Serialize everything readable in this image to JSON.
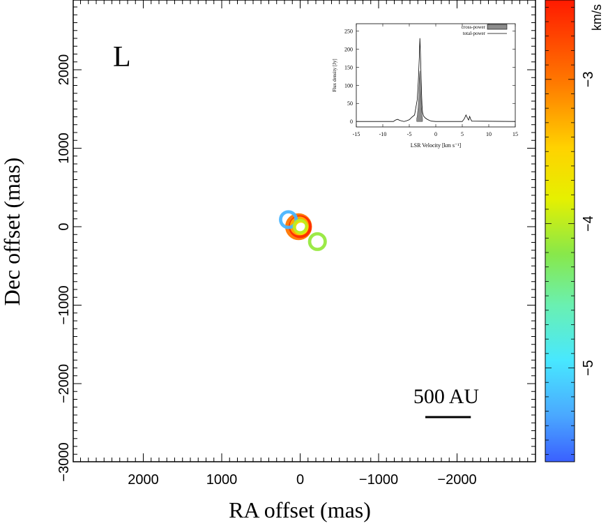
{
  "chart_data": [
    {
      "type": "scatter",
      "panel_label": "L",
      "xlabel": "RA offset (mas)",
      "ylabel": "Dec offset (mas)",
      "xlim": [
        3000,
        -3000
      ],
      "ylim": [
        -3000,
        2750
      ],
      "x_ticks": [
        2000,
        1000,
        0,
        -1000,
        -2000
      ],
      "x_tick_labels": [
        "2000",
        "1000",
        "0",
        "−1000",
        "−2000"
      ],
      "y_ticks": [
        2000,
        1000,
        0,
        -1000,
        -2000,
        -3000
      ],
      "y_tick_labels": [
        "2000",
        "1000",
        "0",
        "−1000",
        "−2000",
        "−3000"
      ],
      "scale_bar_label": "500 AU",
      "scale_bar_length_mas": 580,
      "colorbar": {
        "label": "km/s",
        "range": [
          -5.65,
          -2.45
        ],
        "ticks": [
          -3,
          -4,
          -5
        ],
        "tick_labels": [
          "−3",
          "−4",
          "−5"
        ]
      },
      "points": [
        {
          "x": 20,
          "y": 0,
          "v": -3.0,
          "size": 5
        },
        {
          "x": 0,
          "y": 0,
          "v": -2.55,
          "size": 4
        },
        {
          "x": 10,
          "y": 10,
          "v": -3.3,
          "size": 3
        },
        {
          "x": -10,
          "y": -10,
          "v": -3.6,
          "size": 2
        },
        {
          "x": 0,
          "y": 5,
          "v": -4.0,
          "size": 2
        },
        {
          "x": 150,
          "y": 90,
          "v": -5.25,
          "size": 3
        },
        {
          "x": -220,
          "y": -190,
          "v": -4.15,
          "size": 3
        }
      ]
    },
    {
      "type": "line",
      "inset": true,
      "xlabel": "LSR Velocity [km s⁻¹]",
      "ylabel": "Flux density [Jy]",
      "xlim": [
        -15,
        15
      ],
      "ylim": [
        -15,
        270
      ],
      "x_ticks": [
        -15,
        -10,
        -5,
        0,
        5,
        10,
        15
      ],
      "y_ticks": [
        0,
        50,
        100,
        150,
        200,
        250
      ],
      "legend": [
        "cross-power",
        "total-power"
      ],
      "legend_position": "top-right",
      "series": [
        {
          "name": "total-power",
          "x": [
            -15,
            -8,
            -7.6,
            -7.2,
            -6.8,
            -6,
            -5.5,
            -5,
            -4.5,
            -4,
            -3.8,
            -3.5,
            -3.3,
            -3.1,
            -3.0,
            -2.9,
            -2.8,
            -2.7,
            -2.6,
            -2.5,
            -2.3,
            -2.0,
            -1.6,
            -1.2,
            -0.8,
            0,
            5,
            5.4,
            5.7,
            6.0,
            6.2,
            6.4,
            6.6,
            6.8,
            15
          ],
          "y": [
            0,
            0,
            4,
            6,
            3,
            0,
            2,
            5,
            12,
            18,
            35,
            60,
            110,
            180,
            230,
            190,
            140,
            85,
            45,
            25,
            15,
            10,
            6,
            3,
            1,
            0,
            0,
            8,
            18,
            9,
            4,
            14,
            6,
            1,
            0
          ]
        },
        {
          "name": "cross-power",
          "x": [
            -3.6,
            -3.5,
            -3.4,
            -3.3,
            -3.2,
            -3.1,
            -3.0,
            -2.9,
            -2.8,
            -2.7,
            -2.6,
            -2.5
          ],
          "y": [
            8,
            15,
            30,
            45,
            75,
            120,
            140,
            110,
            70,
            40,
            20,
            8
          ]
        }
      ]
    }
  ]
}
